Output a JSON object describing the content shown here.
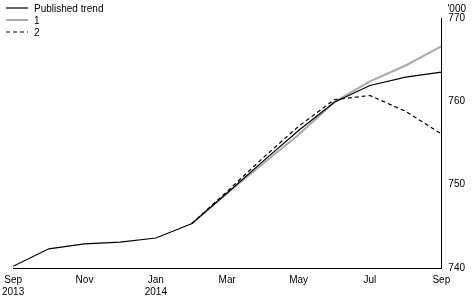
{
  "chart_data": {
    "type": "line",
    "y_label": "'000",
    "categories": [
      "Sep 2013",
      null,
      "Nov",
      null,
      "Jan 2014",
      null,
      "Mar",
      null,
      "May",
      null,
      "Jul",
      null,
      "Sep"
    ],
    "series": [
      {
        "name": "Published trend",
        "color": "#000000",
        "line_style": "solid",
        "values": [
          740.2,
          742.3,
          742.9,
          743.1,
          743.6,
          745.3,
          749.0,
          752.8,
          756.5,
          759.9,
          761.9,
          762.9,
          763.5
        ]
      },
      {
        "name": "1",
        "color": "#aaaaaa",
        "line_style": "solid",
        "values": [
          null,
          null,
          null,
          null,
          null,
          745.3,
          749.0,
          752.5,
          756.0,
          759.9,
          762.4,
          764.3,
          766.6
        ]
      },
      {
        "name": "2",
        "color": "#000000",
        "line_style": "dashed",
        "values": [
          null,
          null,
          null,
          null,
          null,
          745.3,
          749.2,
          753.2,
          757.0,
          760.2,
          760.7,
          758.8,
          756.1
        ]
      }
    ],
    "ylim": [
      740,
      770
    ],
    "yticks": [
      740,
      750,
      760,
      770
    ],
    "grid": false,
    "legend": "upper left"
  }
}
